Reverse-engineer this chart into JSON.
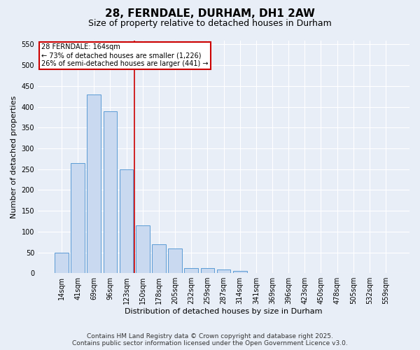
{
  "title_line1": "28, FERNDALE, DURHAM, DH1 2AW",
  "title_line2": "Size of property relative to detached houses in Durham",
  "xlabel": "Distribution of detached houses by size in Durham",
  "ylabel": "Number of detached properties",
  "categories": [
    "14sqm",
    "41sqm",
    "69sqm",
    "96sqm",
    "123sqm",
    "150sqm",
    "178sqm",
    "205sqm",
    "232sqm",
    "259sqm",
    "287sqm",
    "314sqm",
    "341sqm",
    "369sqm",
    "396sqm",
    "423sqm",
    "450sqm",
    "478sqm",
    "505sqm",
    "532sqm",
    "559sqm"
  ],
  "values": [
    50,
    265,
    430,
    390,
    250,
    115,
    70,
    60,
    12,
    12,
    8,
    6,
    0,
    0,
    0,
    0,
    0,
    0,
    0,
    0,
    0
  ],
  "bar_color": "#c9d9f0",
  "bar_edge_color": "#5b9bd5",
  "annotation_line1": "28 FERNDALE: 164sqm",
  "annotation_line2": "← 73% of detached houses are smaller (1,226)",
  "annotation_line3": "26% of semi-detached houses are larger (441) →",
  "annotation_box_color": "#ffffff",
  "annotation_box_edge": "#cc0000",
  "vline_color": "#cc0000",
  "vline_x": 4.5,
  "ylim": [
    0,
    560
  ],
  "yticks": [
    0,
    50,
    100,
    150,
    200,
    250,
    300,
    350,
    400,
    450,
    500,
    550
  ],
  "background_color": "#e8eef7",
  "plot_bg_color": "#e8eef7",
  "footer_line1": "Contains HM Land Registry data © Crown copyright and database right 2025.",
  "footer_line2": "Contains public sector information licensed under the Open Government Licence v3.0.",
  "title_fontsize": 11,
  "subtitle_fontsize": 9,
  "axis_label_fontsize": 8,
  "tick_fontsize": 7,
  "annotation_fontsize": 7,
  "footer_fontsize": 6.5
}
